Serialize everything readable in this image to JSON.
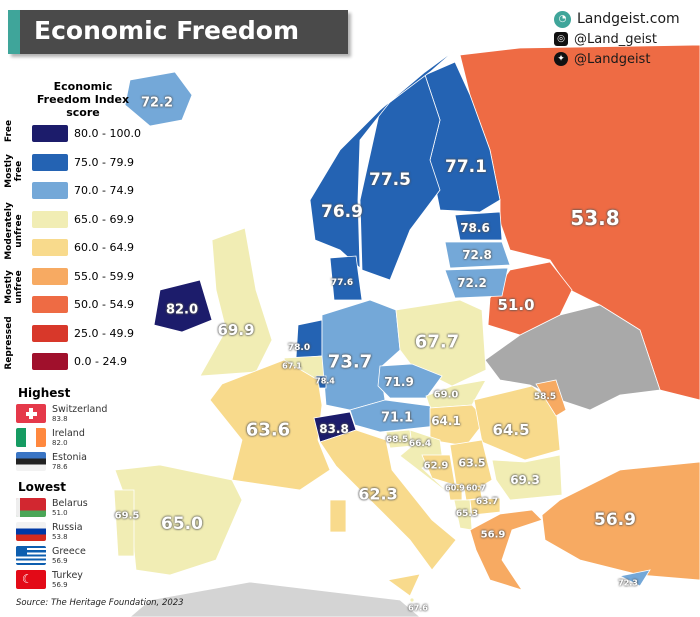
{
  "title": "Economic Freedom",
  "social": {
    "website": "Landgeist.com",
    "instagram": "@Land_geist",
    "twitter": "@Landgeist"
  },
  "legend": {
    "title": "Economic Freedom Index score",
    "bins": [
      {
        "range": "80.0 - 100.0",
        "color": "#1c1c6b"
      },
      {
        "range": "75.0 - 79.9",
        "color": "#2463b3"
      },
      {
        "range": "70.0 - 74.9",
        "color": "#74a8d8"
      },
      {
        "range": "65.0 - 69.9",
        "color": "#f1edb4"
      },
      {
        "range": "60.0 - 64.9",
        "color": "#f8da8c"
      },
      {
        "range": "55.0 - 59.9",
        "color": "#f7aa62"
      },
      {
        "range": "50.0 - 54.9",
        "color": "#ee6b44"
      },
      {
        "range": "25.0 - 49.9",
        "color": "#d8382a"
      },
      {
        "range": "0.0 - 24.9",
        "color": "#a0102c"
      }
    ],
    "categories": [
      "Free",
      "Mostly free",
      "Moderately unfree",
      "Mostly unfree",
      "Repressed"
    ]
  },
  "highest": {
    "heading": "Highest",
    "items": [
      {
        "country": "Switzerland",
        "value": "83.8",
        "flag": "switzerland-flag"
      },
      {
        "country": "Ireland",
        "value": "82.0",
        "flag": "ireland-flag"
      },
      {
        "country": "Estonia",
        "value": "78.6",
        "flag": "estonia-flag"
      }
    ]
  },
  "lowest": {
    "heading": "Lowest",
    "items": [
      {
        "country": "Belarus",
        "value": "51.0",
        "flag": "belarus-flag"
      },
      {
        "country": "Russia",
        "value": "53.8",
        "flag": "russia-flag"
      },
      {
        "country": "Greece",
        "value": "56.9",
        "flag": "greece-flag"
      },
      {
        "country": "Turkey",
        "value": "56.9",
        "flag": "turkey-flag"
      }
    ]
  },
  "source": "Source: The Heritage Foundation, 2023",
  "no_data_color": "#a9a9a9",
  "countries": {
    "iceland": 72.2,
    "norway": 76.9,
    "sweden": 77.5,
    "finland": 77.1,
    "russia": 53.8,
    "estonia": 78.6,
    "latvia": 72.8,
    "lithuania": 72.2,
    "belarus": 51.0,
    "denmark": 77.6,
    "ireland": 82.0,
    "uk": 69.9,
    "netherlands": 78.0,
    "belgium": 67.1,
    "luxembourg": 78.4,
    "germany": 73.7,
    "poland": 67.7,
    "czechia": 71.9,
    "austria": 71.1,
    "slovakia": 69.0,
    "hungary": 64.1,
    "romania": 64.5,
    "moldova": 58.5,
    "france": 63.6,
    "switzerland": 83.8,
    "slovenia": 68.5,
    "croatia": 66.4,
    "bosnia": 62.9,
    "serbia": 63.5,
    "bulgaria": 69.3,
    "montenegro": 60.9,
    "kosovo": 60.7,
    "north_macedonia": 63.7,
    "albania": 65.3,
    "italy": 62.3,
    "portugal": 69.5,
    "spain": 65.0,
    "greece": 56.9,
    "turkey": 56.9,
    "cyprus": 72.3,
    "malta": 67.6
  }
}
